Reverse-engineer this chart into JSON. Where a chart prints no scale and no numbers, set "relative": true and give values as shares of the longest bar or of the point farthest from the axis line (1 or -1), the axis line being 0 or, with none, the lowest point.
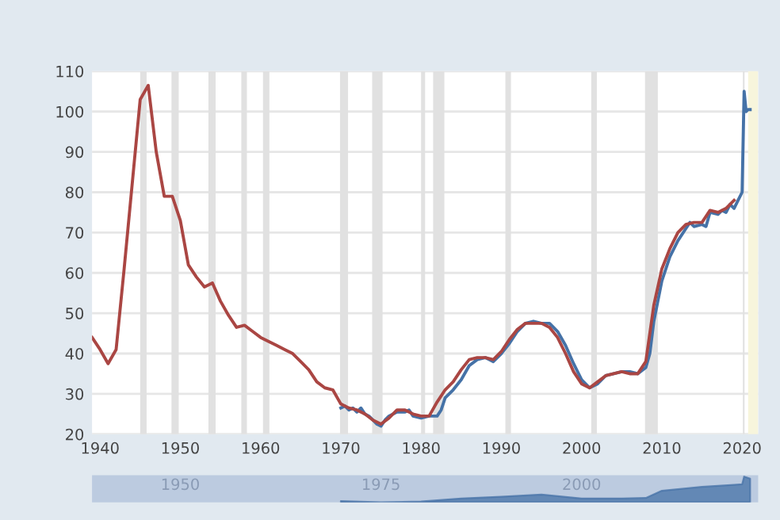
{
  "chart_data": [
    {
      "type": "line",
      "xlim": [
        1939,
        2022
      ],
      "xticks": [
        1940,
        1950,
        1960,
        1970,
        1980,
        1990,
        2000,
        2010,
        2020
      ],
      "ylim": [
        20,
        110
      ],
      "yticks": [
        20,
        30,
        40,
        50,
        60,
        70,
        80,
        90,
        100,
        110
      ],
      "grid": "y",
      "legend": false,
      "marker": "none",
      "line_style": "solid",
      "series": [
        {
          "color": "#4572a7",
          "x": [
            1970,
            1970.5,
            1971,
            1971.5,
            1972,
            1972.5,
            1973,
            1973.5,
            1974,
            1974.5,
            1975,
            1975.5,
            1976,
            1977,
            1978,
            1978.5,
            1979,
            1980,
            1981,
            1982,
            1982.5,
            1983,
            1984,
            1985,
            1986,
            1987,
            1988,
            1989,
            1990,
            1991,
            1992,
            1993,
            1994,
            1995,
            1996,
            1997,
            1998,
            1999,
            2000,
            2001,
            2002,
            2003,
            2004,
            2005,
            2006,
            2007,
            2008,
            2008.5,
            2009,
            2010,
            2011,
            2012,
            2013,
            2013.5,
            2014,
            2015,
            2015.5,
            2016,
            2017,
            2017.5,
            2018,
            2018.5,
            2019,
            2019.5,
            2020,
            2020.25,
            2020.5,
            2020.75,
            2021
          ],
          "values": [
            26.5,
            27,
            26,
            26.5,
            25.5,
            26.5,
            25,
            24.5,
            23.5,
            22.5,
            22,
            23.5,
            24.5,
            25.5,
            25.5,
            26,
            24.5,
            24,
            24.5,
            24.5,
            26,
            29,
            31,
            33.5,
            37,
            38.5,
            39,
            38,
            40,
            42.5,
            45.5,
            47.5,
            48,
            47.5,
            47.5,
            45.5,
            42,
            37.5,
            33.5,
            31.5,
            32.5,
            34.5,
            35,
            35.5,
            35.5,
            35,
            36.5,
            40,
            48,
            58,
            64,
            68,
            71,
            72.5,
            71.5,
            72,
            71.5,
            75,
            74.5,
            75.5,
            75,
            77,
            76,
            78,
            80,
            105,
            100,
            100.5,
            100.5
          ]
        },
        {
          "color": "#aa4643",
          "x": [
            1939,
            1940,
            1941,
            1942,
            1943,
            1944,
            1945,
            1946,
            1947,
            1948,
            1949,
            1950,
            1951,
            1952,
            1953,
            1954,
            1955,
            1956,
            1957,
            1958,
            1959,
            1960,
            1961,
            1962,
            1963,
            1964,
            1965,
            1966,
            1967,
            1968,
            1969,
            1970,
            1971,
            1972,
            1973,
            1974,
            1975,
            1976,
            1977,
            1978,
            1979,
            1980,
            1981,
            1982,
            1983,
            1984,
            1985,
            1986,
            1987,
            1988,
            1989,
            1990,
            1991,
            1992,
            1993,
            1994,
            1995,
            1996,
            1997,
            1998,
            1999,
            2000,
            2001,
            2002,
            2003,
            2004,
            2005,
            2006,
            2007,
            2008,
            2009,
            2010,
            2011,
            2012,
            2013,
            2014,
            2015,
            2016,
            2017,
            2018,
            2019
          ],
          "values": [
            44,
            41,
            37.5,
            41,
            61,
            82,
            103,
            106.5,
            90,
            79,
            79,
            73,
            62,
            59,
            56.5,
            57.5,
            53,
            49.5,
            46.5,
            47,
            45.5,
            44,
            43,
            42,
            41,
            40,
            38,
            36,
            33,
            31.5,
            31,
            27.5,
            26.5,
            26,
            25,
            23.5,
            22.5,
            24,
            26,
            26,
            25,
            24.5,
            24.5,
            28,
            31,
            33,
            36,
            38.5,
            39,
            39,
            38.5,
            40.5,
            43.5,
            46,
            47.5,
            47.5,
            47.5,
            46.5,
            44,
            40,
            35.5,
            32.5,
            31.5,
            33,
            34.5,
            35,
            35.5,
            35,
            35,
            38,
            52,
            61,
            66,
            70,
            72,
            72.5,
            72.5,
            75.5,
            75,
            76,
            78
          ]
        }
      ],
      "bands": [
        {
          "axis": "x",
          "from": 1945,
          "to": 1945.8,
          "color": "#e1e1e1"
        },
        {
          "axis": "x",
          "from": 1948.9,
          "to": 1949.8,
          "color": "#e1e1e1"
        },
        {
          "axis": "x",
          "from": 1953.5,
          "to": 1954.4,
          "color": "#e1e1e1"
        },
        {
          "axis": "x",
          "from": 1957.6,
          "to": 1958.3,
          "color": "#e1e1e1"
        },
        {
          "axis": "x",
          "from": 1960.3,
          "to": 1961.1,
          "color": "#e1e1e1"
        },
        {
          "axis": "x",
          "from": 1969.9,
          "to": 1970.9,
          "color": "#e1e1e1"
        },
        {
          "axis": "x",
          "from": 1973.9,
          "to": 1975.2,
          "color": "#e1e1e1"
        },
        {
          "axis": "x",
          "from": 1980,
          "to": 1980.5,
          "color": "#e1e1e1"
        },
        {
          "axis": "x",
          "from": 1981.5,
          "to": 1982.9,
          "color": "#e1e1e1"
        },
        {
          "axis": "x",
          "from": 1990.5,
          "to": 1991.2,
          "color": "#e1e1e1"
        },
        {
          "axis": "x",
          "from": 2001.2,
          "to": 2001.9,
          "color": "#e1e1e1"
        },
        {
          "axis": "x",
          "from": 2007.9,
          "to": 2009.5,
          "color": "#e1e1e1"
        },
        {
          "axis": "x",
          "from": 2020.1,
          "to": 2020.3,
          "color": "#e1e1e1"
        },
        {
          "axis": "x",
          "from": 2020.75,
          "to": 2022,
          "color": "#f7f5dc"
        }
      ]
    },
    {
      "type": "area",
      "relative": true,
      "xlim": [
        1939,
        2022
      ],
      "xticks": [
        1950,
        1975,
        2000
      ],
      "tick_labels": "x",
      "legend": false,
      "series": [
        {
          "color": "#4572a7",
          "x": [
            1970,
            1975,
            1980,
            1985,
            1990,
            1995,
            2000,
            2005,
            2008,
            2010,
            2015,
            2019,
            2020,
            2020.25,
            2021
          ],
          "values": [
            0.05,
            0,
            0.03,
            0.15,
            0.22,
            0.3,
            0.15,
            0.15,
            0.17,
            0.45,
            0.6,
            0.68,
            0.7,
            1,
            0.92
          ]
        }
      ]
    }
  ]
}
